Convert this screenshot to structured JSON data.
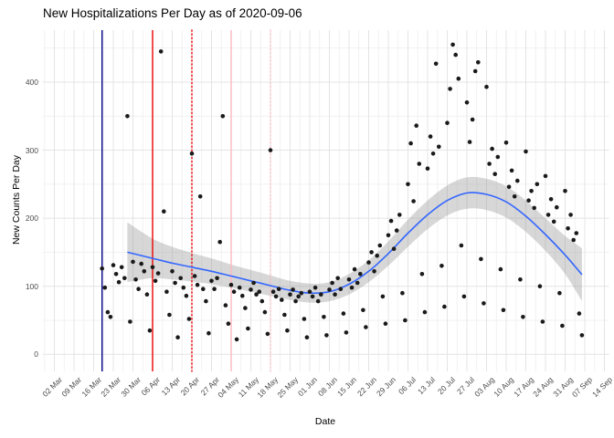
{
  "chart_data": {
    "type": "scatter",
    "title": "New Hospitalizations Per Day as of 2020-09-06",
    "xlabel": "Date",
    "ylabel": "New Counts Per Day",
    "x_start_date": "2020-03-02",
    "x_tick_labels": [
      "02 Mar",
      "09 Mar",
      "16 Mar",
      "23 Mar",
      "30 Mar",
      "06 Apr",
      "13 Apr",
      "20 Apr",
      "27 Apr",
      "04 May",
      "11 May",
      "18 May",
      "25 May",
      "01 Jun",
      "08 Jun",
      "15 Jun",
      "22 Jun",
      "29 Jun",
      "06 Jul",
      "13 Jul",
      "20 Jul",
      "27 Jul",
      "03 Aug",
      "10 Aug",
      "17 Aug",
      "24 Aug",
      "31 Aug",
      "07 Sep",
      "14 Sep"
    ],
    "y_tick_labels": [
      0,
      100,
      200,
      300,
      400
    ],
    "ylim": [
      0,
      476
    ],
    "grid": true,
    "legend": "none",
    "colors": {
      "point": "#1a1a1a",
      "smooth_line": "#3366FF",
      "ribbon": "rgba(150,150,150,0.38)",
      "grid_major": "#e4e4e4",
      "grid_minor": "#f1f1f1",
      "axis_text": "#4d4d4d"
    },
    "vlines": [
      {
        "date": "2020-03-19",
        "color": "#00008B",
        "dash": "solid",
        "name": "navy-event-line"
      },
      {
        "date": "2020-04-06",
        "color": "#EE0000",
        "dash": "solid",
        "name": "red-event-line"
      },
      {
        "date": "2020-04-20",
        "color": "#EE0000",
        "dash": "dotted",
        "name": "red-dotted-event-line"
      },
      {
        "date": "2020-05-04",
        "color": "#FFB6C1",
        "dash": "solid",
        "name": "pink-event-line"
      },
      {
        "date": "2020-05-18",
        "color": "#FFC0CB",
        "dash": "dotted",
        "name": "pink-dotted-event-line"
      }
    ],
    "smooth": {
      "note": "loess smooth with confidence ribbon: [date, fit, lower, upper]",
      "nodes": [
        [
          "2020-03-28",
          150,
          106,
          194
        ],
        [
          "2020-04-06",
          141,
          112,
          170
        ],
        [
          "2020-04-13",
          134,
          110,
          158
        ],
        [
          "2020-04-20",
          128,
          107,
          149
        ],
        [
          "2020-04-27",
          122,
          103,
          141
        ],
        [
          "2020-05-04",
          115,
          98,
          132
        ],
        [
          "2020-05-11",
          108,
          92,
          124
        ],
        [
          "2020-05-18",
          101,
          86,
          116
        ],
        [
          "2020-05-25",
          94,
          80,
          108
        ],
        [
          "2020-06-01",
          90,
          76,
          104
        ],
        [
          "2020-06-08",
          92,
          78,
          106
        ],
        [
          "2020-06-15",
          103,
          88,
          118
        ],
        [
          "2020-06-22",
          122,
          106,
          138
        ],
        [
          "2020-06-29",
          148,
          130,
          166
        ],
        [
          "2020-07-06",
          178,
          158,
          198
        ],
        [
          "2020-07-13",
          205,
          184,
          226
        ],
        [
          "2020-07-20",
          226,
          204,
          248
        ],
        [
          "2020-07-27",
          237,
          214,
          260
        ],
        [
          "2020-08-03",
          235,
          212,
          258
        ],
        [
          "2020-08-10",
          224,
          201,
          247
        ],
        [
          "2020-08-17",
          203,
          180,
          226
        ],
        [
          "2020-08-24",
          176,
          152,
          200
        ],
        [
          "2020-08-31",
          146,
          118,
          174
        ],
        [
          "2020-09-06",
          117,
          78,
          156
        ]
      ]
    },
    "points": [
      [
        "2020-03-19",
        126
      ],
      [
        "2020-03-20",
        98
      ],
      [
        "2020-03-21",
        62
      ],
      [
        "2020-03-22",
        55
      ],
      [
        "2020-03-23",
        131
      ],
      [
        "2020-03-24",
        118
      ],
      [
        "2020-03-25",
        106
      ],
      [
        "2020-03-26",
        128
      ],
      [
        "2020-03-27",
        112
      ],
      [
        "2020-03-28",
        350
      ],
      [
        "2020-03-29",
        48
      ],
      [
        "2020-03-30",
        136
      ],
      [
        "2020-03-31",
        110
      ],
      [
        "2020-04-01",
        96
      ],
      [
        "2020-04-02",
        133
      ],
      [
        "2020-04-03",
        122
      ],
      [
        "2020-04-04",
        88
      ],
      [
        "2020-04-05",
        35
      ],
      [
        "2020-04-06",
        128
      ],
      [
        "2020-04-07",
        108
      ],
      [
        "2020-04-08",
        119
      ],
      [
        "2020-04-09",
        445
      ],
      [
        "2020-04-10",
        210
      ],
      [
        "2020-04-11",
        92
      ],
      [
        "2020-04-12",
        58
      ],
      [
        "2020-04-13",
        122
      ],
      [
        "2020-04-14",
        105
      ],
      [
        "2020-04-15",
        25
      ],
      [
        "2020-04-16",
        112
      ],
      [
        "2020-04-17",
        98
      ],
      [
        "2020-04-18",
        86
      ],
      [
        "2020-04-19",
        52
      ],
      [
        "2020-04-20",
        295
      ],
      [
        "2020-04-21",
        115
      ],
      [
        "2020-04-22",
        102
      ],
      [
        "2020-04-23",
        232
      ],
      [
        "2020-04-24",
        96
      ],
      [
        "2020-04-25",
        78
      ],
      [
        "2020-04-26",
        31
      ],
      [
        "2020-04-27",
        108
      ],
      [
        "2020-04-28",
        96
      ],
      [
        "2020-04-29",
        112
      ],
      [
        "2020-04-30",
        165
      ],
      [
        "2020-05-01",
        350
      ],
      [
        "2020-05-02",
        72
      ],
      [
        "2020-05-03",
        45
      ],
      [
        "2020-05-04",
        102
      ],
      [
        "2020-05-05",
        92
      ],
      [
        "2020-05-06",
        22
      ],
      [
        "2020-05-07",
        98
      ],
      [
        "2020-05-08",
        86
      ],
      [
        "2020-05-09",
        68
      ],
      [
        "2020-05-10",
        38
      ],
      [
        "2020-05-11",
        95
      ],
      [
        "2020-05-12",
        105
      ],
      [
        "2020-05-13",
        88
      ],
      [
        "2020-05-14",
        92
      ],
      [
        "2020-05-15",
        78
      ],
      [
        "2020-05-16",
        62
      ],
      [
        "2020-05-17",
        30
      ],
      [
        "2020-05-18",
        300
      ],
      [
        "2020-05-19",
        92
      ],
      [
        "2020-05-20",
        85
      ],
      [
        "2020-05-21",
        96
      ],
      [
        "2020-05-22",
        80
      ],
      [
        "2020-05-23",
        58
      ],
      [
        "2020-05-24",
        35
      ],
      [
        "2020-05-25",
        88
      ],
      [
        "2020-05-26",
        95
      ],
      [
        "2020-05-27",
        78
      ],
      [
        "2020-05-28",
        85
      ],
      [
        "2020-05-29",
        90
      ],
      [
        "2020-05-30",
        52
      ],
      [
        "2020-05-31",
        25
      ],
      [
        "2020-06-01",
        92
      ],
      [
        "2020-06-02",
        85
      ],
      [
        "2020-06-03",
        98
      ],
      [
        "2020-06-04",
        78
      ],
      [
        "2020-06-05",
        88
      ],
      [
        "2020-06-06",
        55
      ],
      [
        "2020-06-07",
        28
      ],
      [
        "2020-06-08",
        95
      ],
      [
        "2020-06-09",
        105
      ],
      [
        "2020-06-10",
        88
      ],
      [
        "2020-06-11",
        112
      ],
      [
        "2020-06-12",
        96
      ],
      [
        "2020-06-13",
        60
      ],
      [
        "2020-06-14",
        32
      ],
      [
        "2020-06-15",
        110
      ],
      [
        "2020-06-16",
        98
      ],
      [
        "2020-06-17",
        125
      ],
      [
        "2020-06-18",
        105
      ],
      [
        "2020-06-19",
        118
      ],
      [
        "2020-06-20",
        65
      ],
      [
        "2020-06-21",
        40
      ],
      [
        "2020-06-22",
        135
      ],
      [
        "2020-06-23",
        150
      ],
      [
        "2020-06-24",
        122
      ],
      [
        "2020-06-25",
        145
      ],
      [
        "2020-06-26",
        160
      ],
      [
        "2020-06-27",
        85
      ],
      [
        "2020-06-28",
        45
      ],
      [
        "2020-06-29",
        175
      ],
      [
        "2020-06-30",
        196
      ],
      [
        "2020-07-01",
        155
      ],
      [
        "2020-07-02",
        182
      ],
      [
        "2020-07-03",
        205
      ],
      [
        "2020-07-04",
        90
      ],
      [
        "2020-07-05",
        50
      ],
      [
        "2020-07-06",
        250
      ],
      [
        "2020-07-07",
        310
      ],
      [
        "2020-07-08",
        225
      ],
      [
        "2020-07-09",
        336
      ],
      [
        "2020-07-10",
        280
      ],
      [
        "2020-07-11",
        118
      ],
      [
        "2020-07-12",
        62
      ],
      [
        "2020-07-13",
        273
      ],
      [
        "2020-07-14",
        320
      ],
      [
        "2020-07-15",
        295
      ],
      [
        "2020-07-16",
        427
      ],
      [
        "2020-07-17",
        305
      ],
      [
        "2020-07-18",
        130
      ],
      [
        "2020-07-19",
        70
      ],
      [
        "2020-07-20",
        340
      ],
      [
        "2020-07-21",
        390
      ],
      [
        "2020-07-22",
        455
      ],
      [
        "2020-07-23",
        440
      ],
      [
        "2020-07-24",
        405
      ],
      [
        "2020-07-25",
        160
      ],
      [
        "2020-07-26",
        85
      ],
      [
        "2020-07-27",
        370
      ],
      [
        "2020-07-28",
        312
      ],
      [
        "2020-07-29",
        345
      ],
      [
        "2020-07-30",
        416
      ],
      [
        "2020-07-31",
        429
      ],
      [
        "2020-08-01",
        140
      ],
      [
        "2020-08-02",
        75
      ],
      [
        "2020-08-03",
        393
      ],
      [
        "2020-08-04",
        280
      ],
      [
        "2020-08-05",
        302
      ],
      [
        "2020-08-06",
        265
      ],
      [
        "2020-08-07",
        290
      ],
      [
        "2020-08-08",
        125
      ],
      [
        "2020-08-09",
        65
      ],
      [
        "2020-08-10",
        311
      ],
      [
        "2020-08-11",
        246
      ],
      [
        "2020-08-12",
        270
      ],
      [
        "2020-08-13",
        232
      ],
      [
        "2020-08-14",
        255
      ],
      [
        "2020-08-15",
        110
      ],
      [
        "2020-08-16",
        55
      ],
      [
        "2020-08-17",
        298
      ],
      [
        "2020-08-18",
        226
      ],
      [
        "2020-08-19",
        240
      ],
      [
        "2020-08-20",
        215
      ],
      [
        "2020-08-21",
        250
      ],
      [
        "2020-08-22",
        100
      ],
      [
        "2020-08-23",
        48
      ],
      [
        "2020-08-24",
        262
      ],
      [
        "2020-08-25",
        205
      ],
      [
        "2020-08-26",
        228
      ],
      [
        "2020-08-27",
        195
      ],
      [
        "2020-08-28",
        216
      ],
      [
        "2020-08-29",
        90
      ],
      [
        "2020-08-30",
        42
      ],
      [
        "2020-08-31",
        240
      ],
      [
        "2020-09-01",
        185
      ],
      [
        "2020-09-02",
        205
      ],
      [
        "2020-09-03",
        168
      ],
      [
        "2020-09-04",
        178
      ],
      [
        "2020-09-05",
        60
      ],
      [
        "2020-09-06",
        28
      ]
    ]
  }
}
